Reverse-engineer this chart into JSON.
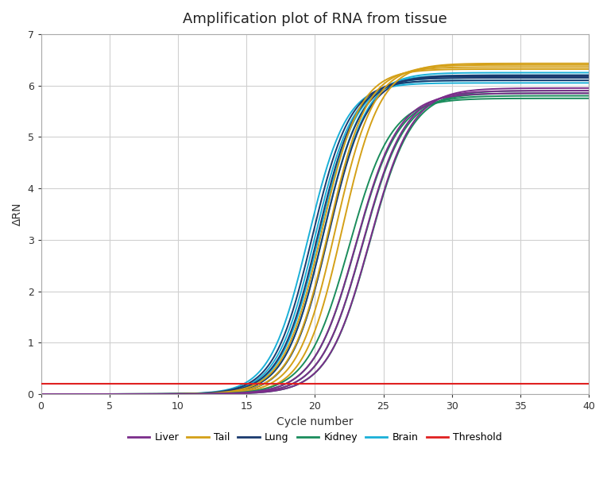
{
  "title": "Amplification plot of RNA from tissue",
  "xlabel": "Cycle number",
  "ylabel": "ΔRN",
  "xlim": [
    0,
    40
  ],
  "ylim": [
    0,
    7
  ],
  "xticks": [
    0,
    5,
    10,
    15,
    20,
    25,
    30,
    35,
    40
  ],
  "yticks": [
    0,
    1,
    2,
    3,
    4,
    5,
    6,
    7
  ],
  "threshold": 0.2,
  "threshold_color": "#e02020",
  "colors": {
    "Liver": "#7b2d8b",
    "Tail": "#d4a017",
    "Lung": "#1a3a6e",
    "Kidney": "#1a8c5c",
    "Brain": "#1ab0d8"
  },
  "series": {
    "Brain": {
      "curves": [
        {
          "mid": 19.5,
          "plateau": 6.05,
          "k": 0.72
        },
        {
          "mid": 20.0,
          "plateau": 6.1,
          "k": 0.72
        },
        {
          "mid": 20.3,
          "plateau": 6.15,
          "k": 0.72
        },
        {
          "mid": 20.6,
          "plateau": 6.2,
          "k": 0.72
        },
        {
          "mid": 21.0,
          "plateau": 6.25,
          "k": 0.72
        }
      ]
    },
    "Lung": {
      "curves": [
        {
          "mid": 19.8,
          "plateau": 6.1,
          "k": 0.72
        },
        {
          "mid": 20.2,
          "plateau": 6.15,
          "k": 0.72
        },
        {
          "mid": 20.6,
          "plateau": 6.18,
          "k": 0.72
        },
        {
          "mid": 21.0,
          "plateau": 6.2,
          "k": 0.72
        }
      ]
    },
    "Tail": {
      "curves": [
        {
          "mid": 20.5,
          "plateau": 6.32,
          "k": 0.72
        },
        {
          "mid": 21.0,
          "plateau": 6.36,
          "k": 0.72
        },
        {
          "mid": 21.5,
          "plateau": 6.4,
          "k": 0.72
        },
        {
          "mid": 22.0,
          "plateau": 6.43,
          "k": 0.72
        }
      ]
    },
    "Liver": {
      "curves": [
        {
          "mid": 23.0,
          "plateau": 5.85,
          "k": 0.65
        },
        {
          "mid": 23.5,
          "plateau": 5.9,
          "k": 0.65
        },
        {
          "mid": 24.0,
          "plateau": 5.95,
          "k": 0.65
        }
      ]
    },
    "Kidney": {
      "curves": [
        {
          "mid": 22.5,
          "plateau": 5.75,
          "k": 0.65
        },
        {
          "mid": 23.0,
          "plateau": 5.8,
          "k": 0.65
        },
        {
          "mid": 23.5,
          "plateau": 5.85,
          "k": 0.65
        },
        {
          "mid": 24.0,
          "plateau": 5.9,
          "k": 0.65
        }
      ]
    }
  },
  "background_color": "#ffffff",
  "grid_color": "#d0d0d0"
}
